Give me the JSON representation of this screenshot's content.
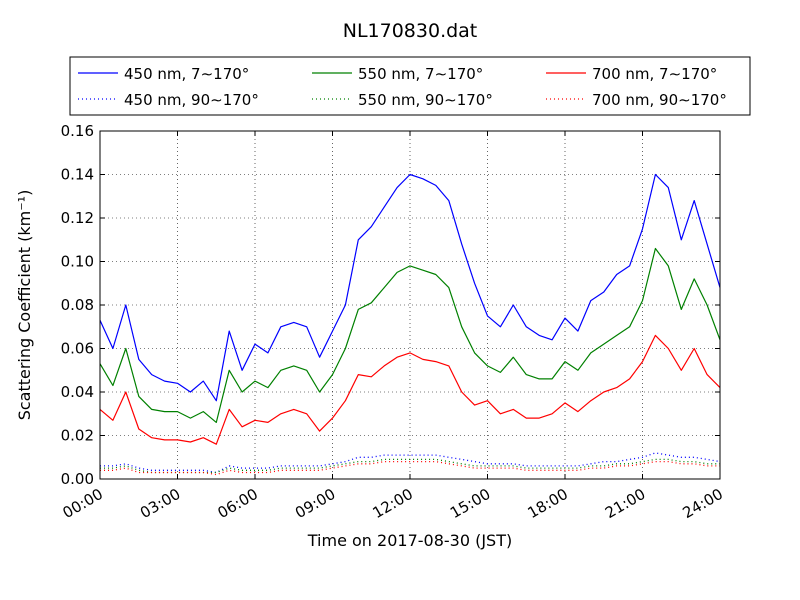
{
  "chart_data": {
    "type": "line",
    "title": "NL170830.dat",
    "xlabel": "Time on 2017-08-30 (JST)",
    "ylabel": "Scattering Coefficient (km⁻¹)",
    "xlim": [
      0,
      24
    ],
    "ylim": [
      0,
      0.16
    ],
    "grid": true,
    "legend_position": "top",
    "x_ticks": [
      "00:00",
      "03:00",
      "06:00",
      "09:00",
      "12:00",
      "15:00",
      "18:00",
      "21:00",
      "24:00"
    ],
    "y_ticks": [
      "0.00",
      "0.02",
      "0.04",
      "0.06",
      "0.08",
      "0.10",
      "0.12",
      "0.14",
      "0.16"
    ],
    "x": [
      0,
      0.5,
      1,
      1.5,
      2,
      2.5,
      3,
      3.5,
      4,
      4.5,
      5,
      5.5,
      6,
      6.5,
      7,
      7.5,
      8,
      8.5,
      9,
      9.5,
      10,
      10.5,
      11,
      11.5,
      12,
      12.5,
      13,
      13.5,
      14,
      14.5,
      15,
      15.5,
      16,
      16.5,
      17,
      17.5,
      18,
      18.5,
      19,
      19.5,
      20,
      20.5,
      21,
      21.5,
      22,
      22.5,
      23,
      23.5,
      24
    ],
    "series": [
      {
        "name": "450 nm, 7∼170°",
        "color": "#0000ff",
        "style": "solid",
        "values": [
          0.073,
          0.06,
          0.08,
          0.055,
          0.048,
          0.045,
          0.044,
          0.04,
          0.045,
          0.036,
          0.068,
          0.05,
          0.062,
          0.058,
          0.07,
          0.072,
          0.07,
          0.056,
          0.068,
          0.08,
          0.11,
          0.116,
          0.125,
          0.134,
          0.14,
          0.138,
          0.135,
          0.128,
          0.108,
          0.09,
          0.075,
          0.07,
          0.08,
          0.07,
          0.066,
          0.064,
          0.074,
          0.068,
          0.082,
          0.086,
          0.094,
          0.098,
          0.115,
          0.14,
          0.134,
          0.11,
          0.128,
          0.108,
          0.088
        ]
      },
      {
        "name": "450 nm, 90∼170°",
        "color": "#0000ff",
        "style": "dotted",
        "values": [
          0.006,
          0.006,
          0.007,
          0.005,
          0.004,
          0.004,
          0.004,
          0.004,
          0.004,
          0.003,
          0.006,
          0.005,
          0.005,
          0.005,
          0.006,
          0.006,
          0.006,
          0.006,
          0.007,
          0.008,
          0.01,
          0.01,
          0.011,
          0.011,
          0.011,
          0.011,
          0.011,
          0.01,
          0.009,
          0.008,
          0.007,
          0.007,
          0.007,
          0.006,
          0.006,
          0.006,
          0.006,
          0.006,
          0.007,
          0.008,
          0.008,
          0.009,
          0.01,
          0.012,
          0.011,
          0.01,
          0.01,
          0.009,
          0.008
        ]
      },
      {
        "name": "550 nm, 7∼170°",
        "color": "#008000",
        "style": "solid",
        "values": [
          0.053,
          0.043,
          0.06,
          0.038,
          0.032,
          0.031,
          0.031,
          0.028,
          0.031,
          0.026,
          0.05,
          0.04,
          0.045,
          0.042,
          0.05,
          0.052,
          0.05,
          0.04,
          0.048,
          0.06,
          0.078,
          0.081,
          0.088,
          0.095,
          0.098,
          0.096,
          0.094,
          0.088,
          0.07,
          0.058,
          0.052,
          0.049,
          0.056,
          0.048,
          0.046,
          0.046,
          0.054,
          0.05,
          0.058,
          0.062,
          0.066,
          0.07,
          0.082,
          0.106,
          0.098,
          0.078,
          0.092,
          0.08,
          0.064
        ]
      },
      {
        "name": "550 nm, 90∼170°",
        "color": "#008000",
        "style": "dotted",
        "values": [
          0.005,
          0.005,
          0.006,
          0.004,
          0.003,
          0.003,
          0.003,
          0.003,
          0.003,
          0.003,
          0.005,
          0.004,
          0.004,
          0.004,
          0.005,
          0.005,
          0.005,
          0.005,
          0.006,
          0.007,
          0.008,
          0.008,
          0.009,
          0.009,
          0.009,
          0.009,
          0.009,
          0.008,
          0.007,
          0.006,
          0.006,
          0.006,
          0.006,
          0.005,
          0.005,
          0.005,
          0.005,
          0.005,
          0.006,
          0.006,
          0.007,
          0.007,
          0.008,
          0.009,
          0.009,
          0.008,
          0.008,
          0.007,
          0.007
        ]
      },
      {
        "name": "700 nm, 7∼170°",
        "color": "#ff0000",
        "style": "solid",
        "values": [
          0.032,
          0.027,
          0.04,
          0.023,
          0.019,
          0.018,
          0.018,
          0.017,
          0.019,
          0.016,
          0.032,
          0.024,
          0.027,
          0.026,
          0.03,
          0.032,
          0.03,
          0.022,
          0.028,
          0.036,
          0.048,
          0.047,
          0.052,
          0.056,
          0.058,
          0.055,
          0.054,
          0.052,
          0.04,
          0.034,
          0.036,
          0.03,
          0.032,
          0.028,
          0.028,
          0.03,
          0.035,
          0.031,
          0.036,
          0.04,
          0.042,
          0.046,
          0.054,
          0.066,
          0.06,
          0.05,
          0.06,
          0.048,
          0.042
        ]
      },
      {
        "name": "700 nm, 90∼170°",
        "color": "#ff0000",
        "style": "dotted",
        "values": [
          0.004,
          0.004,
          0.005,
          0.003,
          0.003,
          0.003,
          0.003,
          0.003,
          0.003,
          0.002,
          0.004,
          0.003,
          0.003,
          0.003,
          0.004,
          0.004,
          0.004,
          0.004,
          0.005,
          0.006,
          0.007,
          0.007,
          0.008,
          0.008,
          0.008,
          0.008,
          0.008,
          0.007,
          0.006,
          0.005,
          0.005,
          0.005,
          0.005,
          0.004,
          0.004,
          0.004,
          0.004,
          0.004,
          0.005,
          0.005,
          0.006,
          0.006,
          0.007,
          0.008,
          0.008,
          0.007,
          0.007,
          0.006,
          0.006
        ]
      }
    ]
  }
}
